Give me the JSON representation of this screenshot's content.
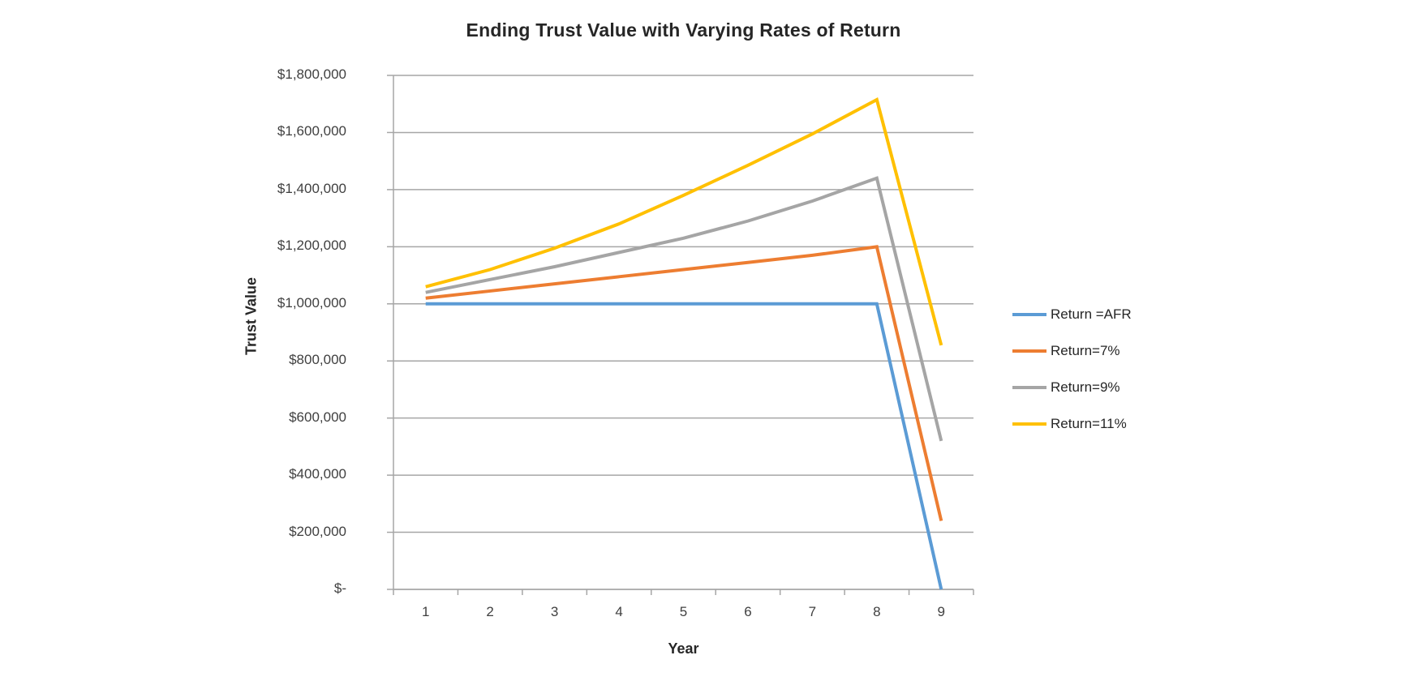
{
  "chart_data": {
    "type": "line",
    "title": "Ending Trust Value with Varying Rates of Return",
    "xlabel": "Year",
    "ylabel": "Trust Value",
    "categories": [
      "1",
      "2",
      "3",
      "4",
      "5",
      "6",
      "7",
      "8",
      "9"
    ],
    "series": [
      {
        "name": "Return =AFR",
        "color": "#5B9BD5",
        "values": [
          1000000,
          1000000,
          1000000,
          1000000,
          1000000,
          1000000,
          1000000,
          1000000,
          0
        ]
      },
      {
        "name": "Return=7%",
        "color": "#ED7D31",
        "values": [
          1020000,
          1045000,
          1070000,
          1095000,
          1120000,
          1145000,
          1170000,
          1200000,
          240000
        ]
      },
      {
        "name": "Return=9%",
        "color": "#A5A5A5",
        "values": [
          1040000,
          1085000,
          1130000,
          1180000,
          1230000,
          1290000,
          1360000,
          1440000,
          520000
        ]
      },
      {
        "name": "Return=11%",
        "color": "#FFC000",
        "values": [
          1060000,
          1120000,
          1195000,
          1280000,
          1380000,
          1485000,
          1595000,
          1715000,
          855000
        ]
      }
    ],
    "ylim": [
      0,
      1800000
    ],
    "y_step": 200000,
    "ytick_labels": [
      "$1,800,000",
      "$1,600,000",
      "$1,400,000",
      "$1,200,000",
      "$1,000,000",
      "$800,000",
      "$600,000",
      "$400,000",
      "$200,000",
      "$-"
    ],
    "legend_position": "right",
    "grid": "horizontal",
    "gridline_color": "#A6A6A6",
    "axis_color": "#A6A6A6",
    "title_color": "#262626",
    "tick_label_color": "#3F3F3F",
    "background_color": "#FFFFFF"
  }
}
